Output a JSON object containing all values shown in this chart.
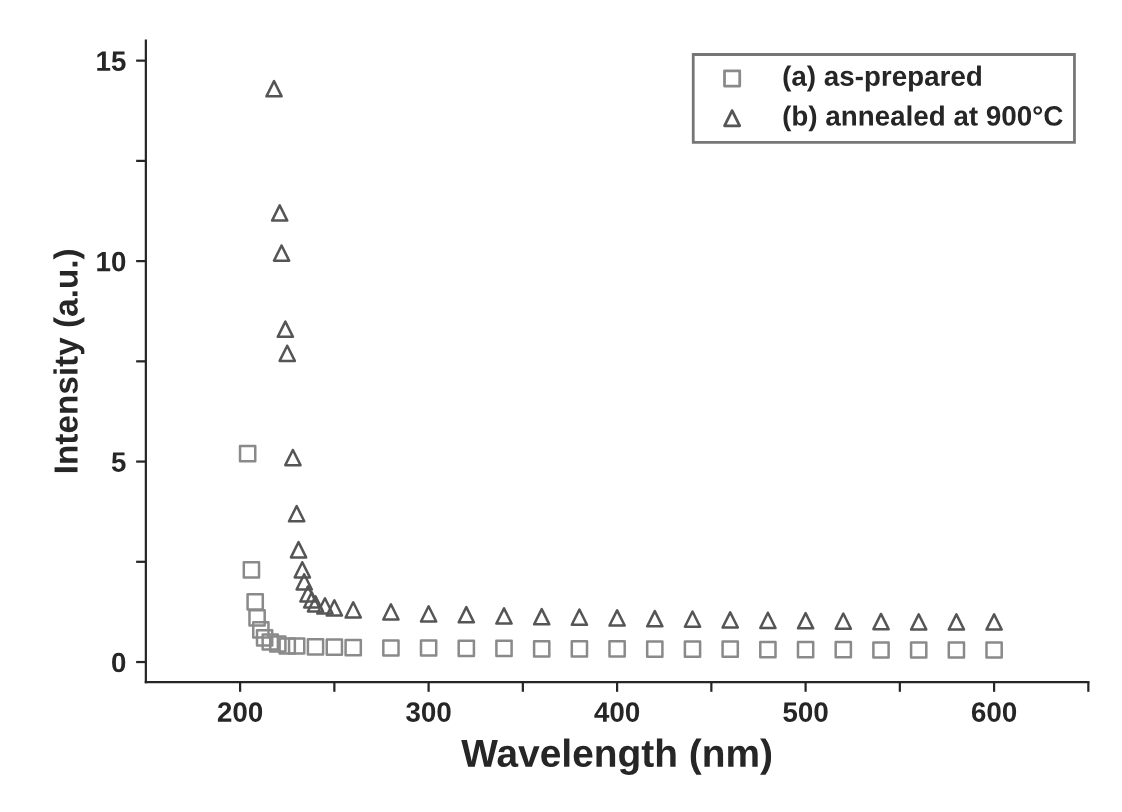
{
  "chart_data": {
    "type": "scatter",
    "xlabel": "Wavelength (nm)",
    "ylabel": "Intensity (a.u.)",
    "xlim": [
      150,
      650
    ],
    "ylim": [
      -0.5,
      15.5
    ],
    "xticks": [
      200,
      {
        "value": 250,
        "label": null
      },
      300,
      {
        "value": 350,
        "label": null
      },
      400,
      {
        "value": 450,
        "label": null
      },
      500,
      {
        "value": 550,
        "label": null
      },
      600,
      {
        "value": 650,
        "label": null
      }
    ],
    "yticks": [
      0,
      {
        "value": 2.5,
        "label": null
      },
      5,
      {
        "value": 7.5,
        "label": null
      },
      10,
      {
        "value": 12.5,
        "label": null
      },
      15
    ],
    "grid": false,
    "legend": "top right",
    "series": [
      {
        "name": "(a) as-prepared",
        "marker": "square",
        "color": "#8a8a8a",
        "x": [
          204,
          206,
          208,
          209,
          211,
          213,
          216,
          220,
          225,
          230,
          240,
          250,
          260,
          280,
          300,
          320,
          340,
          360,
          380,
          400,
          420,
          440,
          460,
          480,
          500,
          520,
          540,
          560,
          580,
          600
        ],
        "values": [
          5.2,
          2.3,
          1.5,
          1.1,
          0.8,
          0.6,
          0.5,
          0.45,
          0.4,
          0.4,
          0.38,
          0.37,
          0.36,
          0.35,
          0.35,
          0.34,
          0.34,
          0.33,
          0.33,
          0.33,
          0.32,
          0.32,
          0.32,
          0.31,
          0.31,
          0.31,
          0.3,
          0.3,
          0.3,
          0.3
        ]
      },
      {
        "name": "(b) annealed at 900°C",
        "marker": "triangle",
        "color": "#555555",
        "x": [
          218,
          221,
          222,
          224,
          225,
          228,
          230,
          231,
          233,
          234,
          236,
          238,
          240,
          245,
          250,
          260,
          280,
          300,
          320,
          340,
          360,
          380,
          400,
          420,
          440,
          460,
          480,
          500,
          520,
          540,
          560,
          580,
          600
        ],
        "values": [
          14.3,
          11.2,
          10.2,
          8.3,
          7.7,
          5.1,
          3.7,
          2.8,
          2.3,
          2.0,
          1.7,
          1.55,
          1.45,
          1.4,
          1.35,
          1.3,
          1.25,
          1.2,
          1.18,
          1.15,
          1.13,
          1.12,
          1.1,
          1.08,
          1.07,
          1.05,
          1.04,
          1.03,
          1.02,
          1.01,
          1.0,
          1.0,
          1.0
        ]
      }
    ]
  }
}
